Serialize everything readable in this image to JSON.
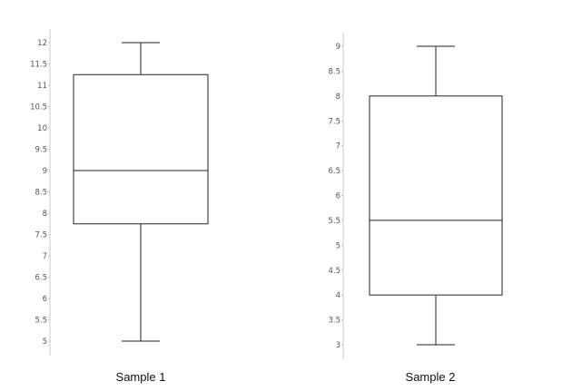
{
  "chart_data": {
    "type": "boxplot",
    "title": "",
    "colors": {
      "box_stroke": "#222222",
      "axis": "#c8c8c8",
      "tick_text": "#555555"
    },
    "grid": false,
    "panels": [
      {
        "name": "Sample 1",
        "ylim": [
          5,
          12
        ],
        "ticks": [
          "5",
          "5.5",
          "6",
          "6.5",
          "7",
          "7.5",
          "8",
          "8.5",
          "9",
          "9.5",
          "10",
          "10.5",
          "11",
          "11.5",
          "12"
        ],
        "tick_values": [
          5,
          5.5,
          6,
          6.5,
          7,
          7.5,
          8,
          8.5,
          9,
          9.5,
          10,
          10.5,
          11,
          11.5,
          12
        ],
        "whisker_low": 5,
        "q1": 7.75,
        "median": 9,
        "q3": 11.25,
        "whisker_high": 12
      },
      {
        "name": "Sample 2",
        "ylim": [
          3,
          9
        ],
        "ticks": [
          "3",
          "3.5",
          "4",
          "4.5",
          "5",
          "5.5",
          "6",
          "6.5",
          "7",
          "7.5",
          "8",
          "8.5",
          "9"
        ],
        "tick_values": [
          3,
          3.5,
          4,
          4.5,
          5,
          5.5,
          6,
          6.5,
          7,
          7.5,
          8,
          8.5,
          9
        ],
        "whisker_low": 3,
        "q1": 4,
        "median": 5.5,
        "q3": 8,
        "whisker_high": 9
      }
    ]
  }
}
